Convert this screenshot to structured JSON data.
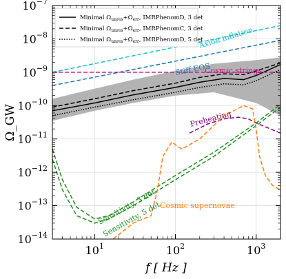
{
  "chart_data": {
    "type": "line",
    "xscale": "log",
    "yscale": "log",
    "xlim": [
      3,
      2000
    ],
    "ylim": [
      1e-14,
      1e-07
    ],
    "grid": true,
    "legend_position": "top-left",
    "xlabel": "f [ Hz ]",
    "ylabel": "Ω_GW",
    "x_ticks": [
      {
        "label": "10",
        "sup": "1",
        "value": 10
      },
      {
        "label": "10",
        "sup": "2",
        "value": 100
      },
      {
        "label": "10",
        "sup": "3",
        "value": 1000
      }
    ],
    "y_ticks": [
      {
        "label": "10",
        "sup": "−14",
        "value": 1e-14
      },
      {
        "label": "10",
        "sup": "−13",
        "value": 1e-13
      },
      {
        "label": "10",
        "sup": "−12",
        "value": 1e-12
      },
      {
        "label": "10",
        "sup": "−11",
        "value": 1e-11
      },
      {
        "label": "10",
        "sup": "−10",
        "value": 1e-10
      },
      {
        "label": "10",
        "sup": "−9",
        "value": 1e-09
      },
      {
        "label": "10",
        "sup": "−8",
        "value": 1e-08
      },
      {
        "label": "10",
        "sup": "−7",
        "value": 1e-07
      }
    ],
    "legend": [
      {
        "style": "solid",
        "text_a": "Minimal Ω",
        "sub1": "unres",
        "text_b": "+Ω",
        "sub2": "err",
        "text_c": ", IMRPhenomD, 3 det"
      },
      {
        "style": "dashed",
        "text_a": "Minimal Ω",
        "sub1": "unres",
        "text_b": "+Ω",
        "sub2": "err",
        "text_c": ", IMRPhenomC, 3 det"
      },
      {
        "style": "dotted",
        "text_a": "Minimal Ω",
        "sub1": "unres",
        "text_b": "+Ω",
        "sub2": "err",
        "text_c": ", IMRPhenomD, 5 det"
      }
    ],
    "band": {
      "color": "#b3b3b3",
      "x": [
        3,
        10,
        30,
        100,
        300,
        1000,
        2000
      ],
      "lower": [
        3.5e-11,
        7e-11,
        1.2e-10,
        2e-10,
        2.5e-10,
        1.2e-10,
        5e-11
      ],
      "upper": [
        1.6e-10,
        3.2e-10,
        6e-10,
        1.1e-09,
        1.8e-09,
        2.3e-09,
        2.8e-09
      ]
    },
    "series": [
      {
        "style": "solid",
        "color": "#000000",
        "x": [
          3,
          10,
          30,
          100,
          200,
          400,
          700,
          1000,
          2000
        ],
        "y": [
          7e-11,
          1.2e-10,
          2.1e-10,
          3.5e-10,
          5e-10,
          6.5e-10,
          6e-10,
          8e-10,
          1.7e-09
        ]
      },
      {
        "style": "dashed",
        "color": "#000000",
        "x": [
          3,
          10,
          30,
          100,
          200,
          400,
          700,
          1000,
          2000
        ],
        "y": [
          9e-11,
          1.6e-10,
          2.8e-10,
          4.7e-10,
          7e-10,
          9e-10,
          8.5e-10,
          1.1e-09,
          1.9e-09
        ]
      },
      {
        "style": "dotted",
        "color": "#000000",
        "x": [
          3,
          10,
          30,
          100,
          200,
          400,
          700,
          1000,
          2000
        ],
        "y": [
          5e-11,
          9e-11,
          1.5e-10,
          2.5e-10,
          3.5e-10,
          4.5e-10,
          4.2e-10,
          5.5e-10,
          1.2e-09
        ]
      },
      {
        "style": "dashed",
        "color": "#17becf",
        "x": [
          3,
          2000
        ],
        "y": [
          1e-09,
          2.5e-08
        ]
      },
      {
        "style": "dashed",
        "color": "#1f77b4",
        "x": [
          3,
          2000
        ],
        "y": [
          4e-10,
          9e-09
        ]
      },
      {
        "style": "dashed",
        "color": "#c71585",
        "x": [
          3,
          2000
        ],
        "y": [
          1e-09,
          1e-09
        ]
      },
      {
        "style": "dashed",
        "color": "#800080",
        "x": [
          150,
          250,
          400,
          600,
          800,
          1000,
          1500,
          2000
        ],
        "y": [
          1.5e-11,
          2.8e-11,
          4e-11,
          4.5e-11,
          4e-11,
          3e-11,
          2e-11,
          1.5e-11
        ]
      },
      {
        "style": "dashed",
        "color": "#228b22",
        "x": [
          3,
          4,
          6,
          10,
          15,
          30,
          100,
          300,
          1000,
          2000
        ],
        "y": [
          2.5e-12,
          3e-13,
          5e-14,
          3e-14,
          4e-14,
          1e-13,
          6e-13,
          3e-12,
          2.5e-11,
          9e-11
        ]
      },
      {
        "style": "dashed",
        "color": "#228b22",
        "x": [
          3,
          4,
          6,
          10,
          15,
          30,
          100,
          300,
          1000,
          2000
        ],
        "y": [
          5e-12,
          6e-13,
          9e-14,
          4e-14,
          5e-14,
          1.3e-13,
          8e-13,
          4e-12,
          3e-11,
          1.1e-10
        ]
      },
      {
        "style": "dashed",
        "color": "#ff7f0e",
        "x": [
          17,
          30,
          50,
          60,
          70,
          90,
          120,
          200,
          400,
          700,
          900,
          1000,
          1100,
          1300,
          1600,
          2000
        ],
        "y": [
          1e-14,
          3e-14,
          5e-14,
          3e-13,
          3e-12,
          8e-12,
          5e-12,
          1e-11,
          5e-11,
          1e-10,
          8e-11,
          2e-11,
          3e-12,
          8e-13,
          4e-13,
          3e-13
        ]
      }
    ],
    "annotations": [
      {
        "text": "Axion inflation",
        "color": "#17becf"
      },
      {
        "text": "Stiff EOS",
        "color": "#1f77b4"
      },
      {
        "text": "Cosmic strings",
        "color": "#c71585"
      },
      {
        "text": "Preheating",
        "color": "#800080"
      },
      {
        "text": "Sensitivity, 3 det",
        "color": "#228b22"
      },
      {
        "text": "Sensitivity, 5 det",
        "color": "#228b22"
      },
      {
        "text": "Cosmic supernovae",
        "color": "#ff7f0e"
      }
    ]
  }
}
